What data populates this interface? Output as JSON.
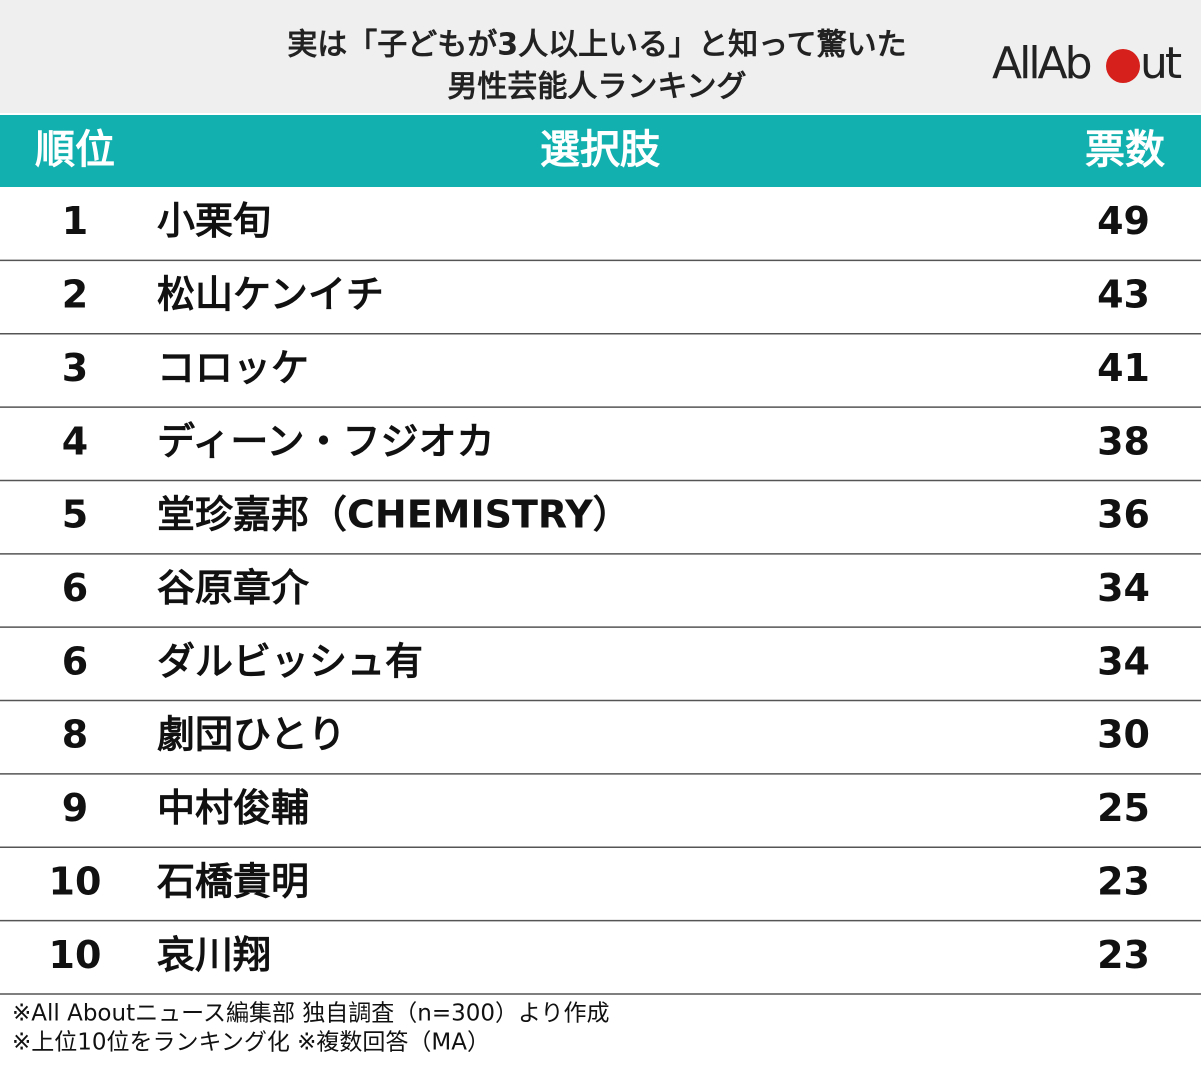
{
  "header": {
    "title_lines": [
      "実は「子どもが3人以上いる」と知って驚いた",
      "男性芸能人ランキング"
    ],
    "logo_left": "AllAb",
    "logo_right": "ut"
  },
  "table": {
    "columns": [
      "順位",
      "選択肢",
      "票数"
    ],
    "rows": [
      [
        1,
        "小栗旬",
        49
      ],
      [
        2,
        "松山ケンイチ",
        43
      ],
      [
        3,
        "コロッケ",
        41
      ],
      [
        4,
        "ディーン・フジオカ",
        38
      ],
      [
        5,
        "堂珍嘉邦（CHEMISTRY）",
        36
      ],
      [
        6,
        "谷原章介",
        34
      ],
      [
        6,
        "ダルビッシュ有",
        34
      ],
      [
        8,
        "劇団ひとり",
        30
      ],
      [
        9,
        "中村俊輔",
        25
      ],
      [
        10,
        "石橋貴明",
        23
      ],
      [
        10,
        "哀川翔",
        23
      ]
    ]
  },
  "footnotes": [
    "※All Aboutニュース編集部 独自調査（n=300）より作成",
    "※上位10位をランキング化 ※複数回答（MA）"
  ]
}
